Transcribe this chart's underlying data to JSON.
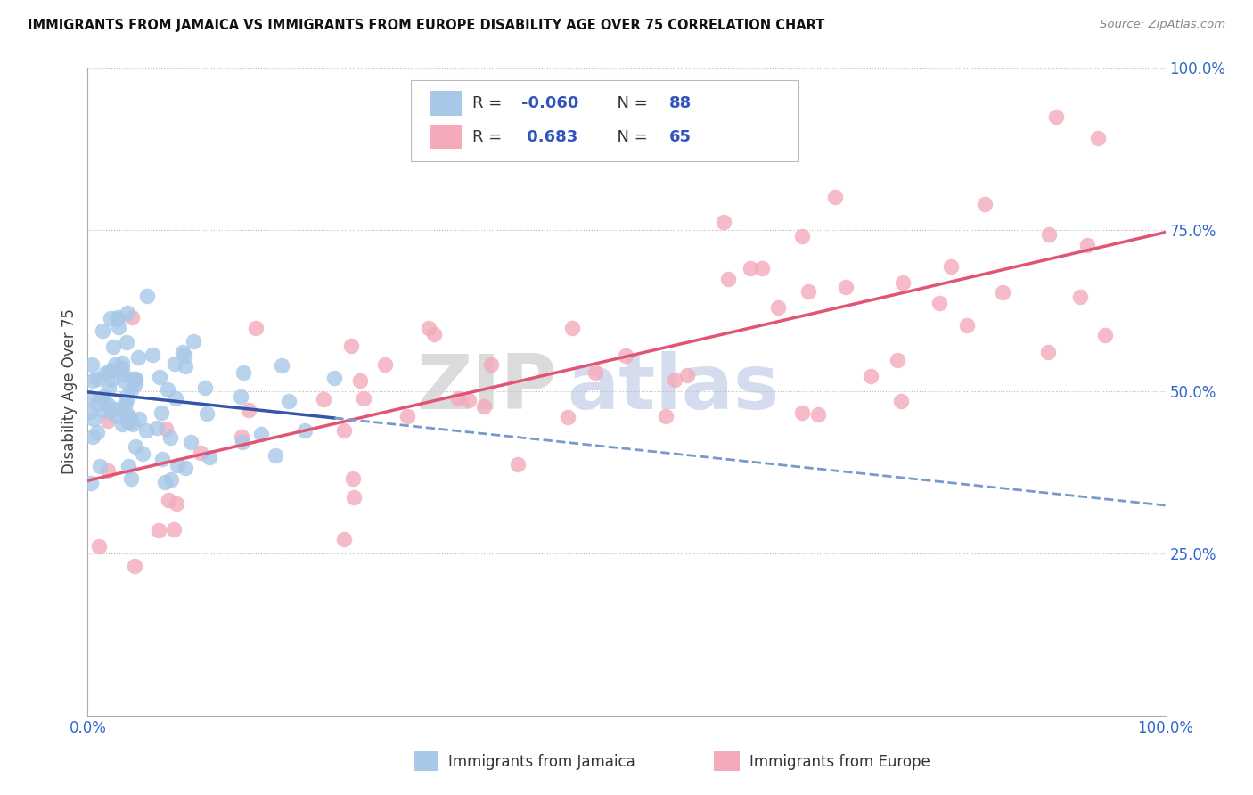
{
  "title": "IMMIGRANTS FROM JAMAICA VS IMMIGRANTS FROM EUROPE DISABILITY AGE OVER 75 CORRELATION CHART",
  "source": "Source: ZipAtlas.com",
  "ylabel": "Disability Age Over 75",
  "R1": -0.06,
  "N1": 88,
  "R2": 0.683,
  "N2": 65,
  "color_blue": "#A8C8E8",
  "color_pink": "#F4AABB",
  "color_blue_line": "#3355AA",
  "color_pink_line": "#E05575",
  "color_blue_dashed": "#7799CC",
  "background_color": "#FFFFFF",
  "grid_color": "#BBBBBB",
  "legend_label1": "Immigrants from Jamaica",
  "legend_label2": "Immigrants from Europe",
  "watermark_zip": "ZIP",
  "watermark_atlas": "atlas",
  "xlim": [
    0.0,
    1.0
  ],
  "ylim": [
    0.0,
    1.0
  ],
  "yticks": [
    0.0,
    0.25,
    0.5,
    0.75,
    1.0
  ],
  "ytick_labels": [
    "",
    "25.0%",
    "50.0%",
    "75.0%",
    "100.0%"
  ],
  "xticks": [
    0.0,
    1.0
  ],
  "xtick_labels": [
    "0.0%",
    "100.0%"
  ]
}
